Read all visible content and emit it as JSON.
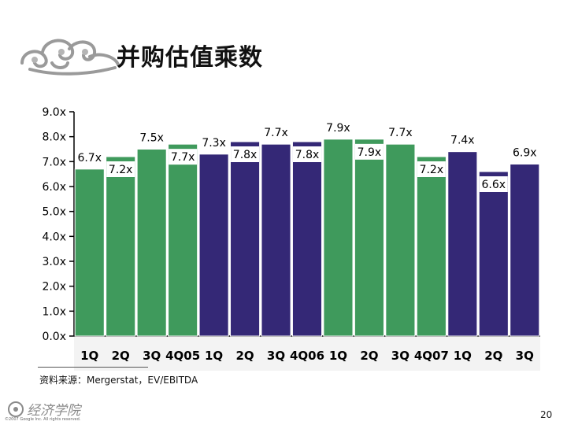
{
  "title": "并购估值乘数",
  "source_note": "资料来源：Mergerstat，EV/EBITDA",
  "footer": {
    "brand": "经济学院",
    "small_print": "©2007 Google Inc. All rights reserved.",
    "page_number": "20"
  },
  "colors": {
    "green": "#3f9a5c",
    "purple": "#342876",
    "plot_bg": "#ffffff",
    "bar_stroke": "#ffffff"
  },
  "chart_data": {
    "type": "bar",
    "title": "",
    "xlabel": "",
    "ylabel": "",
    "ylim": [
      0,
      9
    ],
    "y_ticks": [
      "0.0x",
      "1.0x",
      "2.0x",
      "3.0x",
      "4.0x",
      "5.0x",
      "6.0x",
      "7.0x",
      "8.0x",
      "9.0x"
    ],
    "categories": [
      "1Q",
      "2Q",
      "3Q",
      "4Q05",
      "1Q",
      "2Q",
      "3Q",
      "4Q06",
      "1Q",
      "2Q",
      "3Q",
      "4Q07",
      "1Q",
      "2Q",
      "3Q"
    ],
    "values": [
      6.7,
      7.2,
      7.5,
      7.7,
      7.3,
      7.8,
      7.7,
      7.8,
      7.9,
      7.9,
      7.7,
      7.2,
      7.4,
      6.6,
      6.9
    ],
    "data_labels": [
      "6.7x",
      "7.2x",
      "7.5x",
      "7.7x",
      "7.3x",
      "7.8x",
      "7.7x",
      "7.8x",
      "7.9x",
      "7.9x",
      "7.7x",
      "7.2x",
      "7.4x",
      "6.6x",
      "6.9x"
    ],
    "bar_colors": [
      "green",
      "green",
      "green",
      "green",
      "purple",
      "purple",
      "purple",
      "purple",
      "green",
      "green",
      "green",
      "green",
      "purple",
      "purple",
      "purple"
    ],
    "grid": false,
    "legend": "none"
  }
}
